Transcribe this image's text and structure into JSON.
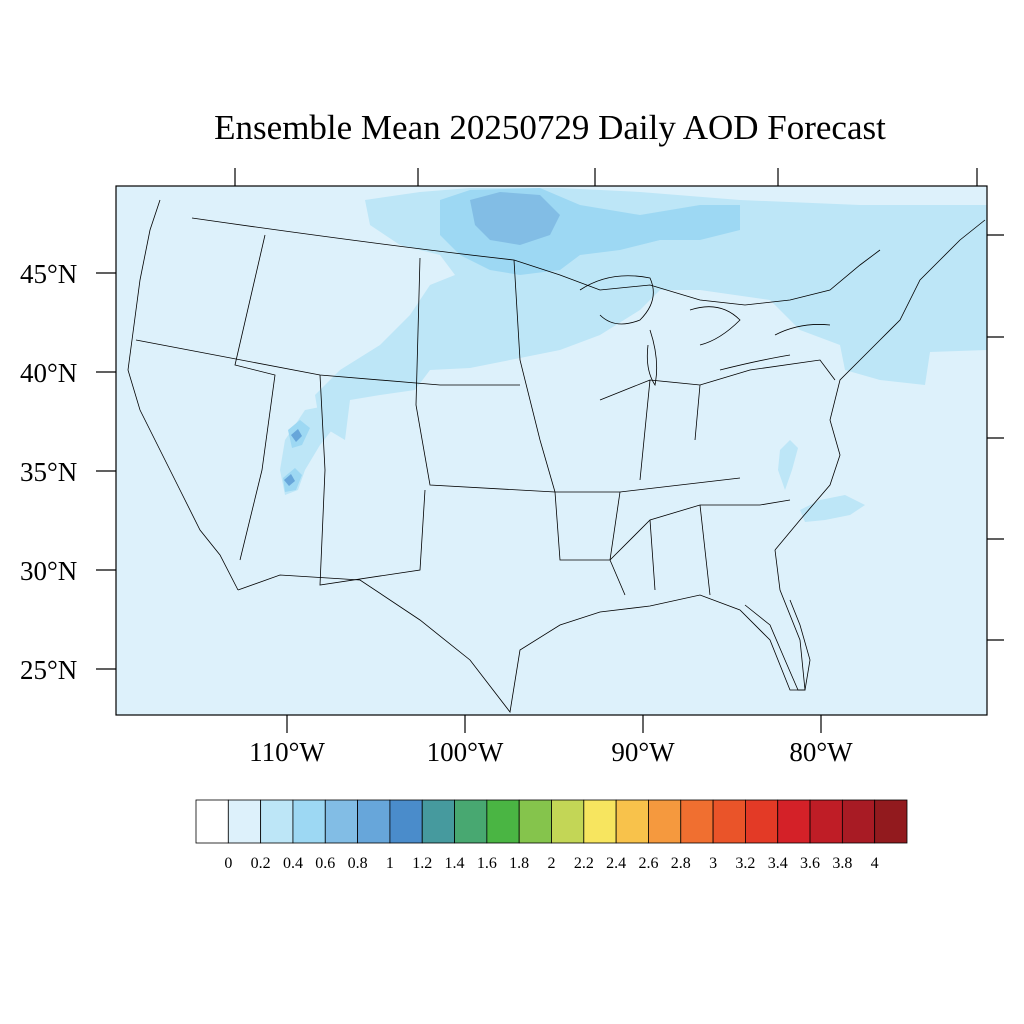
{
  "title": "Ensemble Mean 20250729 Daily AOD Forecast",
  "map": {
    "region": "Contiguous United States",
    "lat_labels": [
      "45°N",
      "40°N",
      "35°N",
      "30°N",
      "25°N"
    ],
    "lon_labels": [
      "110°W",
      "100°W",
      "90°W",
      "80°W"
    ],
    "background_value_color": "#ddf1fb",
    "land_line_color": "#000000"
  },
  "colorbar": {
    "levels": [
      "0",
      "0.2",
      "0.4",
      "0.6",
      "0.8",
      "1",
      "1.2",
      "1.4",
      "1.6",
      "1.8",
      "2",
      "2.2",
      "2.4",
      "2.6",
      "2.8",
      "3",
      "3.2",
      "3.4",
      "3.6",
      "3.8",
      "4"
    ],
    "colors": [
      "#ffffff",
      "#ddf1fb",
      "#bde6f7",
      "#9dd8f3",
      "#82bde5",
      "#67a6da",
      "#4a8ccb",
      "#469a9e",
      "#48a871",
      "#4ab543",
      "#85c44c",
      "#c3d656",
      "#f7e55f",
      "#f8c24b",
      "#f5993e",
      "#f06f30",
      "#ea5429",
      "#e33a26",
      "#d42128",
      "#bf1d26",
      "#a81b24",
      "#921a1e"
    ]
  },
  "chart_data": {
    "type": "heatmap",
    "title": "Ensemble Mean 20250729 Daily AOD Forecast",
    "variable": "AOD",
    "levels": [
      0,
      0.2,
      0.4,
      0.6,
      0.8,
      1,
      1.2,
      1.4,
      1.6,
      1.8,
      2,
      2.2,
      2.4,
      2.6,
      2.8,
      3,
      3.2,
      3.4,
      3.6,
      3.8,
      4
    ],
    "lon_ticks": [
      -110,
      -100,
      -90,
      -80
    ],
    "lat_ticks": [
      45,
      40,
      35,
      30,
      25
    ],
    "background_level_range": [
      0,
      0.2
    ],
    "features": [
      {
        "area": "Northern Minnesota / Ontario border",
        "aod_range": [
          0.6,
          0.8
        ]
      },
      {
        "area": "Northern Plains, Upper Midwest and southern Canada",
        "aod_range": [
          0.2,
          0.6
        ]
      },
      {
        "area": "Northeast US and western Atlantic",
        "aod_range": [
          0.2,
          0.4
        ]
      },
      {
        "area": "Southern Utah / northern Arizona hotspots",
        "aod_range": [
          0.6,
          1.0
        ]
      },
      {
        "area": "Wyoming and eastern Utah plume",
        "aod_range": [
          0.2,
          0.4
        ]
      }
    ]
  }
}
